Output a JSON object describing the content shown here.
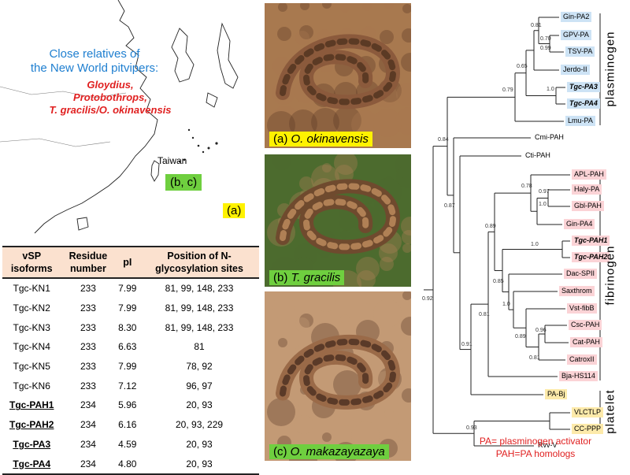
{
  "map": {
    "title_lines": [
      "Close relatives of",
      "the New World pitvipers:"
    ],
    "genera": [
      "Gloydius,",
      "Protobothrops,",
      "T. gracilis/O. okinavensis"
    ],
    "taiwan_label": "Taiwan",
    "tag_a": "(a)",
    "tag_bc": "(b, c)"
  },
  "table": {
    "headers": [
      [
        "vSP",
        "isoforms"
      ],
      [
        "Residue",
        "number"
      ],
      [
        "pI"
      ],
      [
        "Position of N-",
        "glycosylation sites"
      ]
    ],
    "rows": [
      {
        "isoform": "Tgc-KN1",
        "residues": "233",
        "pi": "7.99",
        "sites": "81, 99, 148, 233",
        "emphasis": false
      },
      {
        "isoform": "Tgc-KN2",
        "residues": "233",
        "pi": "7.99",
        "sites": "81, 99, 148, 233",
        "emphasis": false
      },
      {
        "isoform": "Tgc-KN3",
        "residues": "233",
        "pi": "8.30",
        "sites": "81, 99, 148, 233",
        "emphasis": false
      },
      {
        "isoform": "Tgc-KN4",
        "residues": "233",
        "pi": "6.63",
        "sites": "81",
        "emphasis": false
      },
      {
        "isoform": "Tgc-KN5",
        "residues": "233",
        "pi": "7.99",
        "sites": "78, 92",
        "emphasis": false
      },
      {
        "isoform": "Tgc-KN6",
        "residues": "233",
        "pi": "7.12",
        "sites": "96, 97",
        "emphasis": false
      },
      {
        "isoform": "Tgc-PAH1",
        "residues": "234",
        "pi": "5.96",
        "sites": "20, 93",
        "emphasis": true
      },
      {
        "isoform": "Tgc-PAH2",
        "residues": "234",
        "pi": "6.16",
        "sites": "20, 93, 229",
        "emphasis": true
      },
      {
        "isoform": "Tgc-PA3",
        "residues": "234",
        "pi": "4.59",
        "sites": "20, 93",
        "emphasis": true
      },
      {
        "isoform": "Tgc-PA4",
        "residues": "234",
        "pi": "4.80",
        "sites": "20, 93",
        "emphasis": true
      }
    ]
  },
  "photos": [
    {
      "prefix": "(a) ",
      "species": "O. okinavensis",
      "style": "yellow",
      "palette": [
        "#8b5a3c",
        "#5b3a24",
        "#a8794f"
      ]
    },
    {
      "prefix": "(b) ",
      "species": "T. gracilis",
      "style": "green",
      "palette": [
        "#6f4a2e",
        "#b08055",
        "#4c6b2e"
      ]
    },
    {
      "prefix": "(c) ",
      "species": "O. makazayazaya",
      "style": "green",
      "palette": [
        "#9a6a48",
        "#5a3a28",
        "#c39a75"
      ]
    }
  ],
  "tree": {
    "leaves": [
      {
        "id": "gin-pa2",
        "label": "Gin-PA2",
        "color": "blue",
        "bold": false
      },
      {
        "id": "gpv-pa",
        "label": "GPV-PA",
        "color": "blue",
        "bold": false
      },
      {
        "id": "tsv-pa",
        "label": "TSV-PA",
        "color": "blue",
        "bold": false
      },
      {
        "id": "jerdo-ii",
        "label": "Jerdo-II",
        "color": "blue",
        "bold": false
      },
      {
        "id": "tgc-pa3",
        "label": "Tgc-PA3",
        "color": "blue",
        "bold": true
      },
      {
        "id": "tgc-pa4",
        "label": "Tgc-PA4",
        "color": "blue",
        "bold": true
      },
      {
        "id": "lmu-pa",
        "label": "Lmu-PA",
        "color": "blue",
        "bold": false
      },
      {
        "id": "cmi-pah",
        "label": "Cmi-PAH",
        "color": "none",
        "bold": false
      },
      {
        "id": "cti-pah",
        "label": "Cti-PAH",
        "color": "none",
        "bold": false
      },
      {
        "id": "apl-pah",
        "label": "APL-PAH",
        "color": "pink",
        "bold": false
      },
      {
        "id": "haly-pa",
        "label": "Haly-PA",
        "color": "pink",
        "bold": false
      },
      {
        "id": "gbl-pah",
        "label": "Gbl-PAH",
        "color": "pink",
        "bold": false
      },
      {
        "id": "gin-pa4",
        "label": "Gin-PA4",
        "color": "pink",
        "bold": false
      },
      {
        "id": "tgc-pah1",
        "label": "Tgc-PAH1",
        "color": "pink",
        "bold": true
      },
      {
        "id": "tgc-pah2",
        "label": "Tgc-PAH2",
        "color": "pink",
        "bold": true
      },
      {
        "id": "dac-spii",
        "label": "Dac-SPII",
        "color": "pink",
        "bold": false
      },
      {
        "id": "saxthrom",
        "label": "Saxthrom",
        "color": "pink",
        "bold": false
      },
      {
        "id": "vst-fibb",
        "label": "Vst-fibB",
        "color": "pink",
        "bold": false
      },
      {
        "id": "csc-pah",
        "label": "Csc-PAH",
        "color": "pink",
        "bold": false
      },
      {
        "id": "cat-pah",
        "label": "Cat-PAH",
        "color": "pink",
        "bold": false
      },
      {
        "id": "catroxii",
        "label": "CatroxII",
        "color": "pink",
        "bold": false
      },
      {
        "id": "bja-hs114",
        "label": "Bja-HS114",
        "color": "pink",
        "bold": false
      },
      {
        "id": "pa-bj",
        "label": "PA-Bj",
        "color": "yellow",
        "bold": false
      },
      {
        "id": "vlctlp",
        "label": "VLCTLP",
        "color": "yellow",
        "bold": false
      },
      {
        "id": "cc-ppp",
        "label": "CC-PPP",
        "color": "yellow",
        "bold": false
      },
      {
        "id": "rvv-v",
        "label": "Rvv-V",
        "color": "none",
        "bold": false
      }
    ],
    "supports": [
      "0.81",
      "0.70",
      "0.99",
      "0.65",
      "1.0",
      "0.79",
      "0.84",
      "0.87",
      "0.91",
      "0.78",
      "0.97",
      "1.0",
      "0.89",
      "1.0",
      "0.85",
      "1.0",
      "0.89",
      "0.81",
      "0.96",
      "0.81",
      "0.92",
      "0.93"
    ],
    "groups": [
      "plasminogen",
      "fibrinogen",
      "platelet"
    ],
    "legend": [
      "PA= plasminogen activator",
      "PAH=PA homologs"
    ]
  }
}
